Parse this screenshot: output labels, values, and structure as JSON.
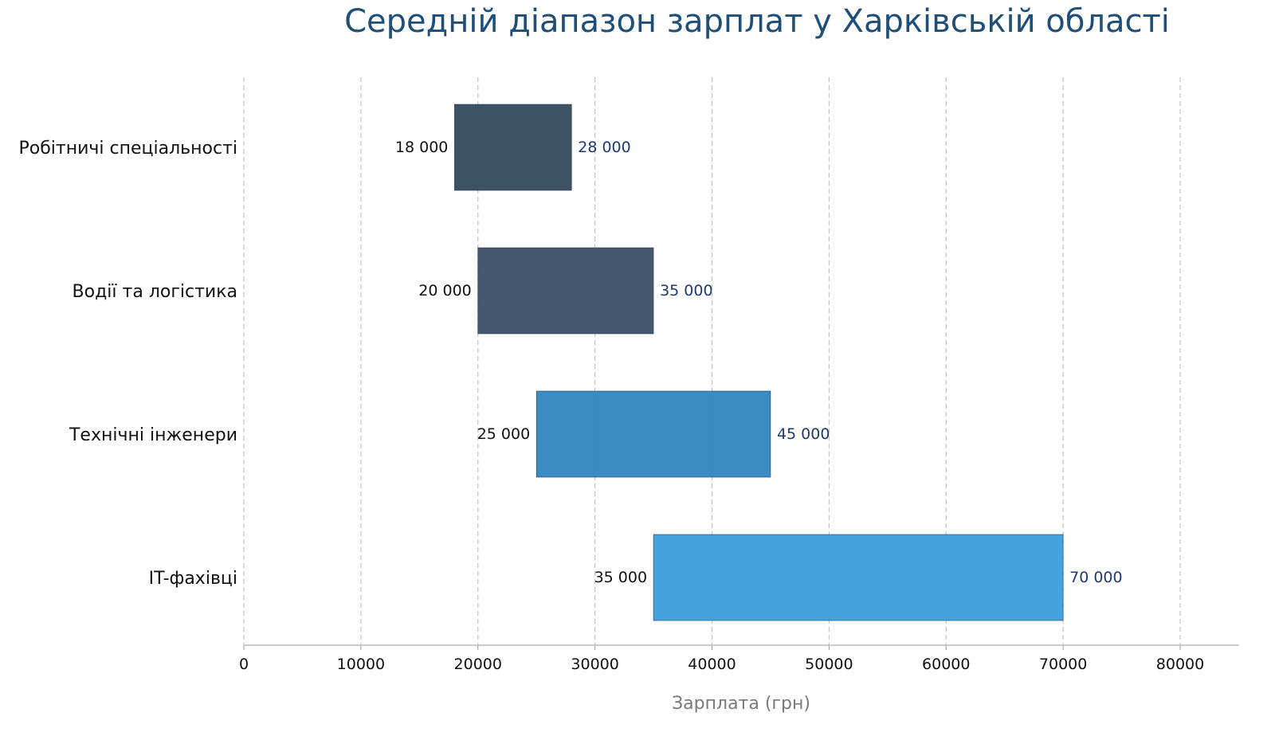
{
  "chart_data": {
    "type": "bar",
    "orientation": "horizontal",
    "variant": "floating-range",
    "title": "Середній діапазон зарплат у Харківській області",
    "xlabel": "Зарплата (грн)",
    "ylabel": "",
    "xlim": [
      0,
      85000
    ],
    "x_ticks": [
      0,
      10000,
      20000,
      30000,
      40000,
      50000,
      60000,
      70000,
      80000
    ],
    "x_tick_labels": [
      "0",
      "10000",
      "20000",
      "30000",
      "40000",
      "50000",
      "60000",
      "70000",
      "80000"
    ],
    "grid": "vertical dashed",
    "categories": [
      "Робітничі спеціальності",
      "Водії та логістика",
      "Технічні інженери",
      "IT-фахівці"
    ],
    "low": [
      18000,
      20000,
      25000,
      35000
    ],
    "high": [
      28000,
      35000,
      45000,
      70000
    ],
    "low_labels": [
      "18 000",
      "20 000",
      "25 000",
      "35 000"
    ],
    "high_labels": [
      "28 000",
      "35 000",
      "45 000",
      "70 000"
    ],
    "colors": [
      "#34495e",
      "#3d5068",
      "#2f86c0",
      "#3b9ddc"
    ],
    "label_color_low": "#111111",
    "label_color_high": "#1f3a6e",
    "title_color": "#1f4e79"
  }
}
